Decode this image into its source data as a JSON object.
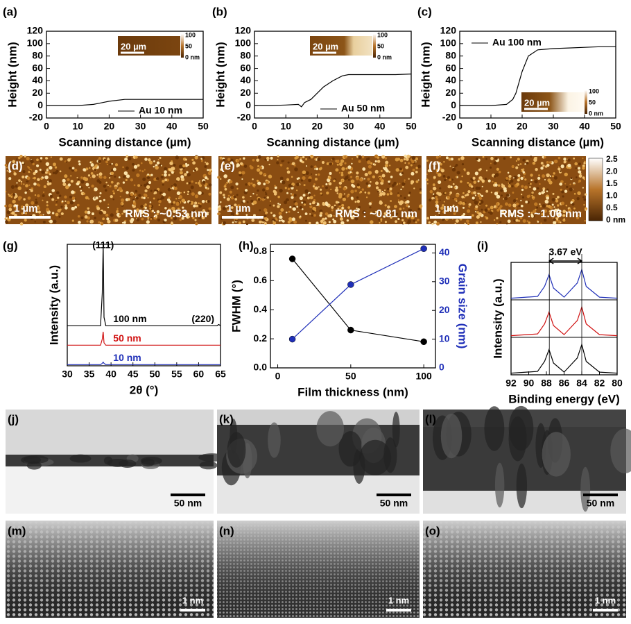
{
  "chart_data": [
    {
      "type": "line",
      "panel": "(a)",
      "x_label": "Scanning distance (µm)",
      "y_label": "Height (nm)",
      "xlim": [
        0,
        50
      ],
      "xticks": [
        0,
        10,
        20,
        30,
        40,
        50
      ],
      "ylim": [
        -20,
        120
      ],
      "yticks": [
        -20,
        0,
        20,
        40,
        60,
        80,
        100,
        120
      ],
      "x": [
        0,
        5,
        10,
        15,
        18,
        20,
        25,
        30,
        35,
        40,
        45,
        50
      ],
      "series": [
        {
          "name": "Au 10 nm",
          "color": "#000000",
          "values": [
            0,
            0,
            0,
            2,
            5,
            7,
            10,
            10,
            10,
            10,
            10,
            10
          ]
        }
      ],
      "inset": {
        "scale_bar": "20 µm",
        "colorbar_ticks": [
          "100",
          "50",
          "0 nm"
        ]
      }
    },
    {
      "type": "line",
      "panel": "(b)",
      "x_label": "Scanning distance (µm)",
      "y_label": "Height (nm)",
      "xlim": [
        0,
        50
      ],
      "xticks": [
        0,
        10,
        20,
        30,
        40,
        50
      ],
      "ylim": [
        -20,
        120
      ],
      "yticks": [
        -20,
        0,
        20,
        40,
        60,
        80,
        100,
        120
      ],
      "x": [
        0,
        5,
        10,
        14,
        15,
        16,
        18,
        20,
        22,
        25,
        28,
        30,
        35,
        40,
        45,
        50
      ],
      "series": [
        {
          "name": "Au 50 nm",
          "color": "#000000",
          "values": [
            0,
            0,
            1,
            2,
            -2,
            5,
            10,
            20,
            30,
            40,
            48,
            50,
            50,
            50,
            50,
            51
          ]
        }
      ],
      "inset": {
        "scale_bar": "20 µm",
        "colorbar_ticks": [
          "100",
          "50",
          "0 nm"
        ]
      }
    },
    {
      "type": "line",
      "panel": "(c)",
      "x_label": "Scanning distance (µm)",
      "y_label": "Height (nm)",
      "xlim": [
        0,
        50
      ],
      "xticks": [
        0,
        10,
        20,
        30,
        40,
        50
      ],
      "ylim": [
        -20,
        120
      ],
      "yticks": [
        -20,
        0,
        20,
        40,
        60,
        80,
        100,
        120
      ],
      "x": [
        0,
        5,
        10,
        15,
        17,
        18,
        20,
        22,
        25,
        30,
        35,
        40,
        45,
        50
      ],
      "series": [
        {
          "name": "Au 100 nm",
          "color": "#000000",
          "values": [
            0,
            0,
            0,
            2,
            10,
            20,
            55,
            80,
            90,
            92,
            93,
            94,
            95,
            95
          ]
        }
      ],
      "inset": {
        "scale_bar": "20 µm",
        "colorbar_ticks": [
          "100",
          "50",
          "0 nm"
        ]
      }
    },
    {
      "type": "line",
      "panel": "(g)",
      "x_label": "2θ (°)",
      "y_label": "Intensity (a.u.)",
      "xlim": [
        30,
        65
      ],
      "xticks": [
        30,
        35,
        40,
        45,
        50,
        55,
        60,
        65
      ],
      "ylim": [
        0,
        100
      ],
      "x": [
        30,
        37.6,
        38.0,
        38.2,
        38.4,
        38.8,
        64.2,
        64.6,
        65
      ],
      "series": [
        {
          "name": "100 nm",
          "color": "#000000",
          "values": [
            33,
            33,
            60,
            100,
            40,
            33,
            33,
            34,
            33
          ]
        },
        {
          "name": "50 nm",
          "color": "#d01010",
          "values": [
            17,
            17,
            22,
            28,
            19,
            17,
            17,
            17,
            17
          ]
        },
        {
          "name": "10 nm",
          "color": "#1f2fb8",
          "values": [
            1,
            1,
            2,
            3,
            2,
            1,
            1,
            1,
            1
          ]
        }
      ],
      "annotations": [
        "(111)",
        "(220)"
      ]
    },
    {
      "type": "dual_axis",
      "panel": "(h)",
      "x_label": "Film thickness (nm)",
      "y_label": "FWHM (°)",
      "y2_label": "Grain size (nm)",
      "xlim": [
        -5,
        108
      ],
      "xticks": [
        0,
        50,
        100
      ],
      "ylim": [
        0,
        0.85
      ],
      "yticks": [
        {
          "value": 0,
          "label": "0.0"
        },
        0.2,
        0.4,
        0.6,
        0.8
      ],
      "y2lim": [
        0,
        43
      ],
      "y2ticks": [
        0,
        10,
        20,
        30,
        40
      ],
      "x": [
        10,
        50,
        100
      ],
      "series": [
        {
          "color": "#000000",
          "values": [
            0.75,
            0.26,
            0.18
          ]
        },
        {
          "color": "#1f2fb8",
          "axis": "y2",
          "values": [
            10,
            29,
            41.5
          ]
        }
      ]
    },
    {
      "type": "stacked_line",
      "panel": "(i)",
      "x_label": "Binding energy  (eV)",
      "y_label": "Intensity (a.u.)",
      "xlim": [
        92,
        80
      ],
      "xticks": [
        92,
        90,
        88,
        86,
        84,
        82,
        80
      ],
      "ylim": [
        0,
        1
      ],
      "annotation": "3.67 eV",
      "marker_lines": [
        87.67,
        84.0
      ],
      "x": [
        92,
        89,
        88.2,
        87.7,
        87.2,
        86,
        84.5,
        84,
        83.5,
        82,
        80
      ],
      "series": [
        {
          "color": "#1f2fb8",
          "values": [
            0.05,
            0.1,
            0.4,
            0.75,
            0.35,
            0.08,
            0.5,
            0.9,
            0.4,
            0.08,
            0.05
          ]
        },
        {
          "color": "#d01010",
          "values": [
            0.05,
            0.1,
            0.4,
            0.75,
            0.35,
            0.08,
            0.5,
            0.9,
            0.4,
            0.08,
            0.05
          ]
        },
        {
          "color": "#000000",
          "values": [
            0.05,
            0.1,
            0.4,
            0.75,
            0.35,
            0.08,
            0.5,
            0.9,
            0.4,
            0.08,
            0.05
          ]
        }
      ]
    }
  ],
  "afm_images": [
    {
      "panel": "(d)",
      "scale_bar": "1 µm",
      "rms": "RMS : ~0.53 nm"
    },
    {
      "panel": "(e)",
      "scale_bar": "1 µm",
      "rms": "RMS : ~0.81 nm"
    },
    {
      "panel": "(f)",
      "scale_bar": "1 µm",
      "rms": "RMS : ~1.06 nm"
    }
  ],
  "afm_colorbar": {
    "ticks": [
      "2.5",
      "2.0",
      "1.5",
      "1.0",
      "0.5",
      "0 nm"
    ]
  },
  "tem_images": [
    {
      "panel": "(j)",
      "scale_bar": "50 nm"
    },
    {
      "panel": "(k)",
      "scale_bar": "50 nm"
    },
    {
      "panel": "(l)",
      "scale_bar": "50 nm"
    }
  ],
  "hrtem_images": [
    {
      "panel": "(m)",
      "scale_bar": "1 nm"
    },
    {
      "panel": "(n)",
      "scale_bar": "1 nm"
    },
    {
      "panel": "(o)",
      "scale_bar": "1 nm"
    }
  ]
}
